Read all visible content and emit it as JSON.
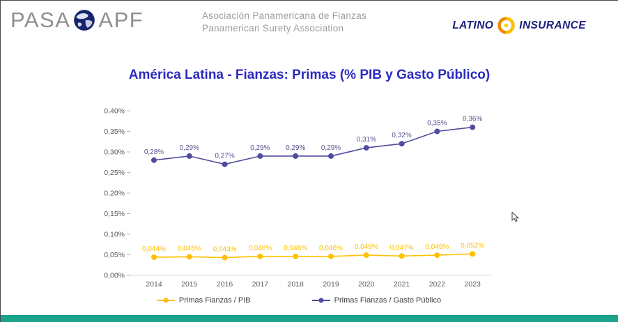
{
  "header": {
    "logo_left": {
      "text_left": "PASA",
      "text_right": "APF"
    },
    "center_line1": "Asociación Panamericana de Fianzas",
    "center_line2": "Panamerican Surety Association",
    "logo_right": {
      "left": "LATINO",
      "right": "INSURANCE"
    }
  },
  "title": "América Latina - Fianzas: Primas (% PIB y Gasto Público)",
  "chart_data": {
    "type": "line",
    "categories": [
      "2014",
      "2015",
      "2016",
      "2017",
      "2018",
      "2019",
      "2020",
      "2021",
      "2022",
      "2023"
    ],
    "series": [
      {
        "name": "Primas Fianzas / PIB",
        "color": "#FFC000",
        "label_color": "#FFC000",
        "values": [
          0.044,
          0.045,
          0.043,
          0.046,
          0.046,
          0.046,
          0.049,
          0.047,
          0.049,
          0.052
        ],
        "labels": [
          "0,044%",
          "0,045%",
          "0,043%",
          "0,046%",
          "0,046%",
          "0,046%",
          "0,049%",
          "0,047%",
          "0,049%",
          "0,052%"
        ]
      },
      {
        "name": "Primas Fianzas / Gasto Público",
        "color": "#4F4C9E",
        "label_color": "#55528C",
        "values": [
          0.28,
          0.29,
          0.27,
          0.29,
          0.29,
          0.29,
          0.31,
          0.32,
          0.35,
          0.36
        ],
        "labels": [
          "0,28%",
          "0,29%",
          "0,27%",
          "0,29%",
          "0,29%",
          "0,29%",
          "0,31%",
          "0,32%",
          "0,35%",
          "0,36%"
        ]
      }
    ],
    "ylim": [
      0,
      0.4
    ],
    "ytick_step": 0.05,
    "ytick_labels": [
      "0,00%",
      "0,05%",
      "0,10%",
      "0,15%",
      "0,20%",
      "0,25%",
      "0,30%",
      "0,35%",
      "0,40%"
    ],
    "grid": "off",
    "legend_position": "bottom"
  },
  "colors": {
    "title": "#2A2AC0",
    "accent_bar": "#1BA28A",
    "axis_text": "#595959"
  }
}
